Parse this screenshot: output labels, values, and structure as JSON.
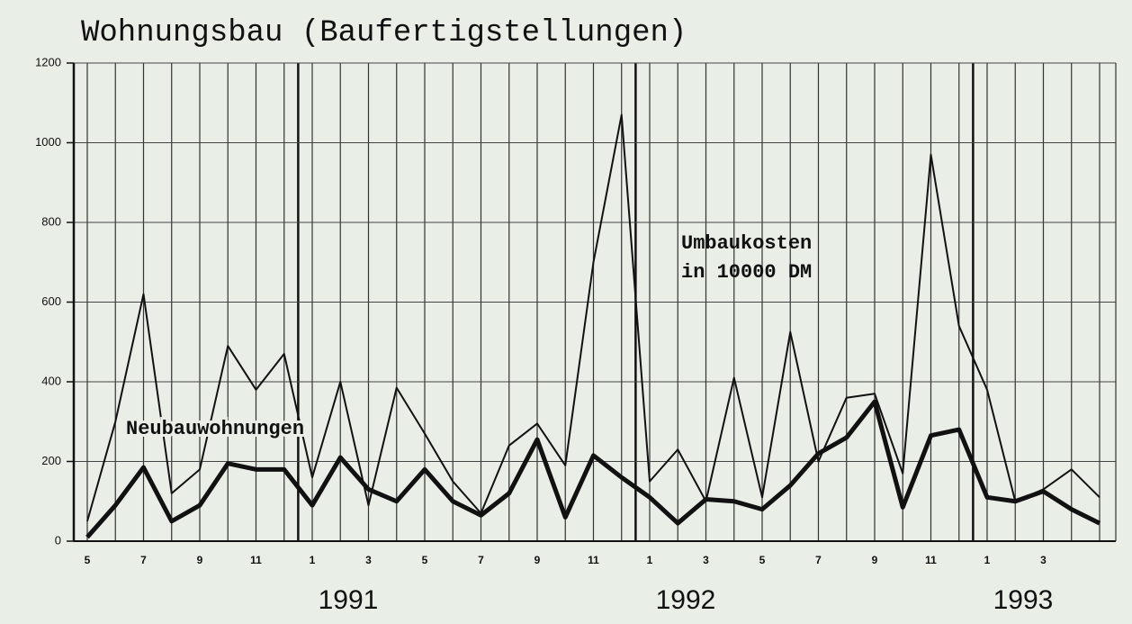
{
  "chart_data": {
    "type": "line",
    "title": "Wohnungsbau (Baufertigstellungen)",
    "categories": [
      "5",
      null,
      "7",
      null,
      "9",
      null,
      "11",
      null,
      "1",
      null,
      "3",
      null,
      "5",
      null,
      "7",
      null,
      "9",
      null,
      "11",
      null,
      "1",
      null,
      "3",
      null,
      "5",
      null,
      "7",
      null,
      "9",
      null,
      "11",
      null,
      "1",
      null,
      "3",
      null,
      null
    ],
    "year_labels": [
      "1991",
      "1992",
      "1993"
    ],
    "series": [
      {
        "name": "Umbaukosten",
        "color": "#111111",
        "values": [
          50,
          300,
          620,
          120,
          180,
          490,
          380,
          470,
          160,
          400,
          90,
          385,
          270,
          150,
          70,
          240,
          295,
          190,
          700,
          1070,
          150,
          230,
          100,
          410,
          110,
          525,
          200,
          360,
          370,
          170,
          970,
          540,
          380,
          100,
          130,
          180,
          110
        ]
      },
      {
        "name": "Neubauwohnungen",
        "color": "#111111",
        "values": [
          10,
          90,
          185,
          50,
          90,
          195,
          180,
          180,
          90,
          210,
          130,
          100,
          180,
          100,
          65,
          120,
          255,
          60,
          215,
          160,
          110,
          45,
          105,
          100,
          80,
          140,
          220,
          260,
          350,
          85,
          265,
          280,
          110,
          100,
          125,
          80,
          45
        ]
      }
    ],
    "annotations": [
      "in 10000 DM"
    ],
    "ylim": [
      0,
      1200
    ],
    "yticks": [
      0,
      200,
      400,
      600,
      800,
      1000,
      1200
    ],
    "grid": true
  }
}
